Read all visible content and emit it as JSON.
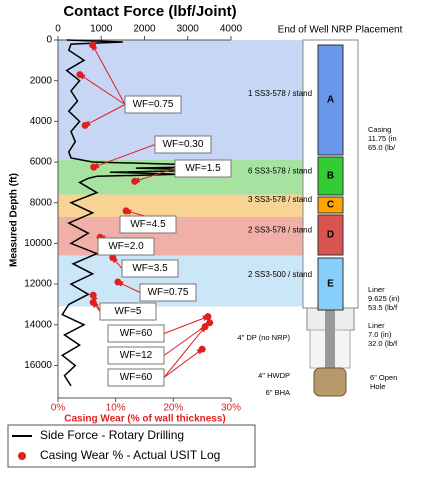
{
  "chart_data": {
    "type": "line",
    "title": "Contact Force (lbf/Joint)",
    "y_label": "Measured Depth (ft)",
    "x2_label": "Casing Wear (% of wall thickness)",
    "ylim": [
      0,
      17600
    ],
    "y_inverted": true,
    "yticks": [
      0,
      2000,
      4000,
      6000,
      8000,
      10000,
      12000,
      14000,
      16000
    ],
    "xlim": [
      0,
      4000
    ],
    "xticks": [
      0,
      1000,
      2000,
      3000,
      4000
    ],
    "x2lim": [
      0,
      30
    ],
    "x2ticks": [
      {
        "value": 0,
        "label": "0%"
      },
      {
        "value": 10,
        "label": "10%"
      },
      {
        "value": 20,
        "label": "20%"
      },
      {
        "value": 30,
        "label": "30%"
      }
    ],
    "series": [
      {
        "name": "Side Force - Rotary Drilling",
        "color": "#000000",
        "axis": "x",
        "x": [
          200,
          1500,
          300,
          250,
          600,
          200,
          500,
          300,
          450,
          250,
          500,
          300,
          400,
          250,
          300,
          800,
          2600,
          4000,
          1800,
          3600,
          1200,
          2800,
          900,
          700,
          500,
          900,
          300,
          800,
          250,
          700,
          300,
          900,
          350,
          800,
          300,
          700,
          250,
          100,
          600,
          150,
          500,
          100,
          400,
          150,
          300
        ],
        "y": [
          0,
          100,
          200,
          500,
          1000,
          1500,
          2000,
          2500,
          3000,
          3500,
          4000,
          4500,
          5000,
          5500,
          5800,
          6000,
          6100,
          6200,
          6300,
          6400,
          6500,
          6600,
          6700,
          6800,
          7000,
          7500,
          8000,
          8500,
          9000,
          9500,
          10000,
          10500,
          11000,
          11500,
          12000,
          12500,
          13000,
          13500,
          14000,
          14500,
          15000,
          15500,
          16000,
          16500,
          17000
        ]
      },
      {
        "name": "Casing Wear % - Actual USIT Log",
        "color": "#e02020",
        "axis": "x2",
        "type": "scatter",
        "x": [
          6.0,
          3.8,
          4.7,
          6.2,
          13.3,
          11.8,
          7.3,
          9.5,
          10.4,
          6.1,
          6.1,
          26.0,
          26.3,
          25.5,
          25.0
        ],
        "y": [
          250,
          1700,
          4200,
          6250,
          6950,
          8400,
          9700,
          10700,
          11900,
          12550,
          12900,
          13600,
          13900,
          14100,
          15200
        ]
      }
    ],
    "bands": [
      {
        "label": "1 SS3-578 / stand",
        "from": 0,
        "to": 5900,
        "color": "#c6d6f4"
      },
      {
        "label": "6 SS3-578 / stand",
        "from": 5900,
        "to": 7600,
        "color": "#a6e3a1"
      },
      {
        "label": "3 SS3-578 / stand",
        "from": 7600,
        "to": 8700,
        "color": "#f7d394"
      },
      {
        "label": "2 SS3-578 / stand",
        "from": 8700,
        "to": 10600,
        "color": "#f0b0a8"
      },
      {
        "label": "2 SS3-500 / stand",
        "from": 10600,
        "to": 13100,
        "color": "#cbe6f7"
      }
    ],
    "annotations": [
      "WF=0.75",
      "WF=0.30",
      "WF=1.5",
      "WF=4.5",
      "WF=2.0",
      "WF=3.5",
      "WF=0.75",
      "WF=5",
      "WF=60",
      "WF=12",
      "WF=60"
    ]
  },
  "diagram": {
    "title": "End of Well NRP Placement",
    "sections": [
      "A",
      "B",
      "C",
      "D",
      "E"
    ],
    "notes": [
      [
        "Casing",
        "11.75 (in",
        "65.0 (lb/"
      ],
      [
        "Liner",
        "9.625 (in)",
        "53.5 (lb/f"
      ],
      [
        "Liner",
        "7.0 (in)",
        "32.0 (lb/f"
      ],
      [
        "4\" DP (no NRP)"
      ],
      [
        "4\" HWDP"
      ],
      [
        "6\" BHA"
      ],
      [
        "6\" Open",
        "Hole"
      ]
    ]
  }
}
